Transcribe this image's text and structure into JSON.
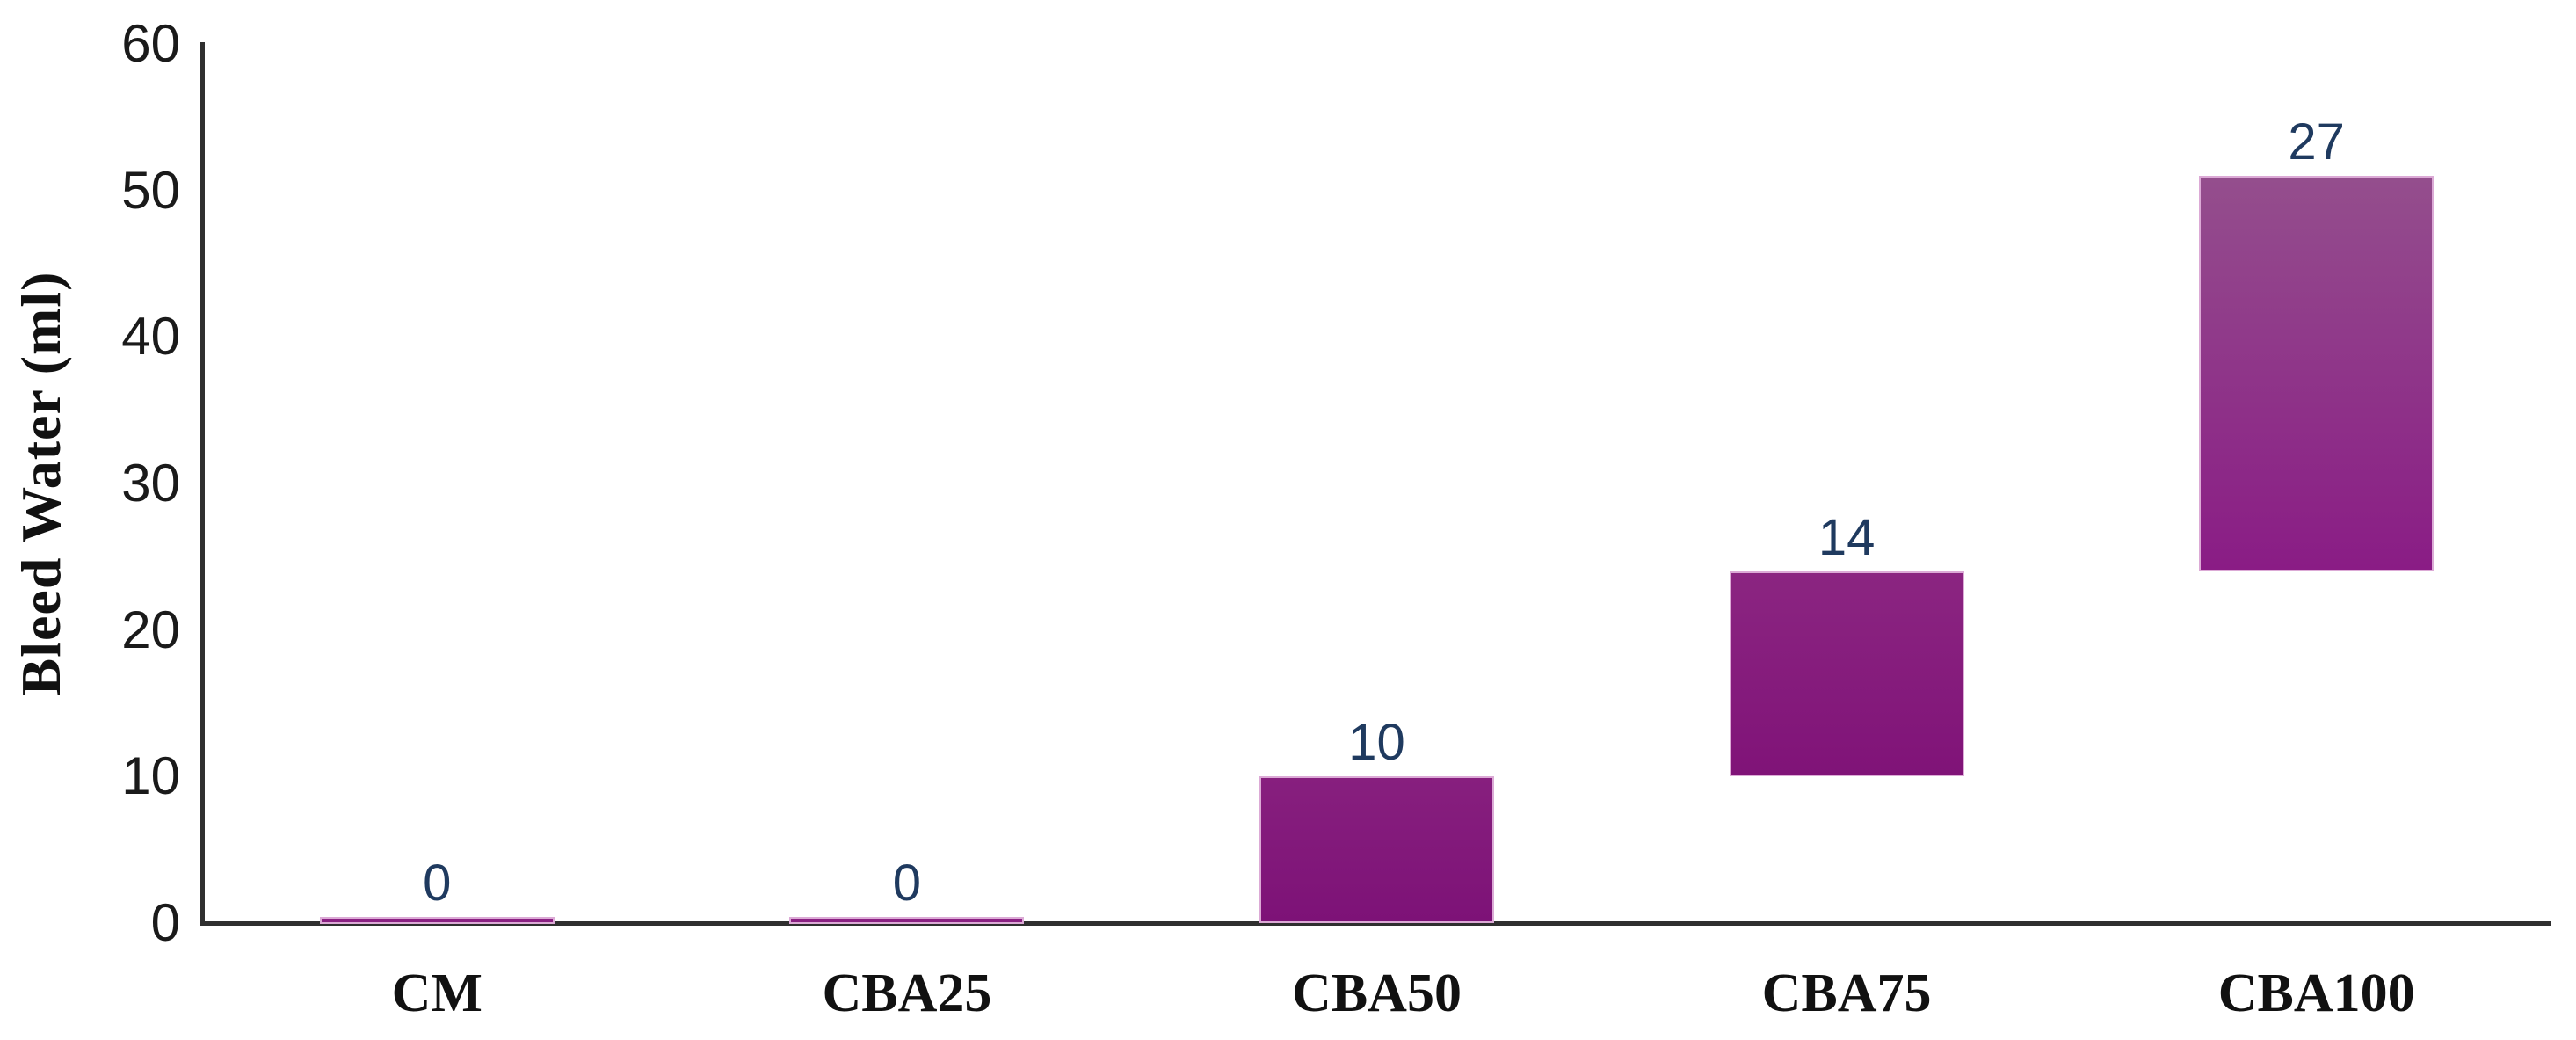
{
  "chart_data": {
    "type": "bar",
    "subtype": "floating-waterfall",
    "title": "",
    "xlabel": "",
    "ylabel": "Bleed Water (ml)",
    "ylim": [
      0,
      60
    ],
    "yticks": [
      0,
      10,
      20,
      30,
      40,
      50,
      60
    ],
    "grid": false,
    "legend": null,
    "categories": [
      "CM",
      "CBA25",
      "CBA50",
      "CBA75",
      "CBA100"
    ],
    "series": [
      {
        "name": "Bleed Water",
        "increments": [
          0,
          0,
          10,
          14,
          27
        ],
        "bar_ranges": [
          [
            0,
            0
          ],
          [
            0,
            0
          ],
          [
            0,
            10
          ],
          [
            10,
            24
          ],
          [
            24,
            51
          ]
        ],
        "data_labels": [
          "0",
          "0",
          "10",
          "14",
          "27"
        ]
      }
    ],
    "colors": {
      "data_label": "#1F3A5F",
      "tick_label": "#1A1A1A",
      "category_label": "#111111",
      "axis_line": "#2F2F2F",
      "bar_border": "#DCAAD6",
      "bar_gradients": [
        {
          "top": "#8A2082",
          "bottom": "#8A2082"
        },
        {
          "top": "#8A2082",
          "bottom": "#8A2082"
        },
        {
          "top": "#871F7E",
          "bottom": "#7D1277"
        },
        {
          "top": "#8B2581",
          "bottom": "#801378"
        },
        {
          "top": "#944E8D",
          "bottom": "#8A1C85"
        }
      ]
    }
  }
}
